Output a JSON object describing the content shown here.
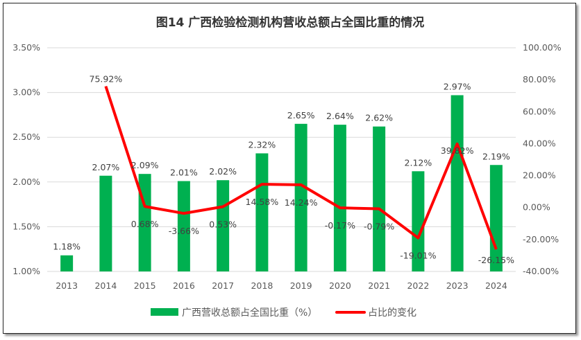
{
  "chart_data": {
    "type": "bar+line",
    "title": "图14 广西检验检测机构营收总额占全国比重的情况",
    "categories": [
      "2013",
      "2014",
      "2015",
      "2016",
      "2017",
      "2018",
      "2019",
      "2020",
      "2021",
      "2022",
      "2023",
      "2024"
    ],
    "series": [
      {
        "name": "广西营收总额占全国比重（%）",
        "type": "bar",
        "axis": "left",
        "color": "#00B050",
        "values": [
          1.18,
          2.07,
          2.09,
          2.01,
          2.02,
          2.32,
          2.65,
          2.64,
          2.62,
          2.12,
          2.97,
          2.19
        ],
        "labels": [
          "1.18%",
          "2.07%",
          "2.09%",
          "2.01%",
          "2.02%",
          "2.32%",
          "2.65%",
          "2.64%",
          "2.62%",
          "2.12%",
          "2.97%",
          "2.19%"
        ]
      },
      {
        "name": "占比的变化",
        "type": "line",
        "axis": "right",
        "color": "#FF0000",
        "values": [
          null,
          75.92,
          0.68,
          -3.66,
          0.53,
          14.58,
          14.24,
          -0.17,
          -0.79,
          -19.01,
          39.82,
          -26.15
        ],
        "labels": [
          "",
          "75.92%",
          "0.68%",
          "-3.66%",
          "0.53%",
          "14.58%",
          "14.24%",
          "-0.17%",
          "-0.79%",
          "-19.01%",
          "39.82%",
          "-26.15%"
        ]
      }
    ],
    "ylim_left": [
      1.0,
      3.5
    ],
    "yticks_left": [
      "1.00%",
      "1.50%",
      "2.00%",
      "2.50%",
      "3.00%",
      "3.50%"
    ],
    "ylim_right": [
      -40,
      100
    ],
    "yticks_right": [
      "-40.00%",
      "-20.00%",
      "0.00%",
      "20.00%",
      "40.00%",
      "60.00%",
      "80.00%",
      "100.00%"
    ],
    "grid": true,
    "legend": "bottom"
  }
}
